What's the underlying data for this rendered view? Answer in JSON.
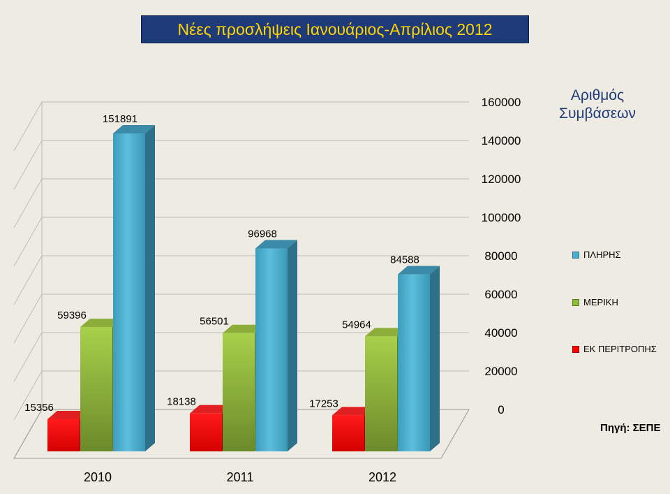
{
  "title": "Νέες προσλήψεις Ιανουάριος-Απρίλιος 2012",
  "y_axis_title": "Αριθμός Συμβάσεων",
  "source": "Πηγή: ΣΕΠΕ",
  "colors": {
    "title_background": "#1f3a78",
    "title_text": "#ffd700",
    "background": "#eeebe2"
  },
  "chart_data": {
    "type": "bar",
    "style": "3d-clustered-column",
    "categories": [
      "2010",
      "2011",
      "2012"
    ],
    "series": [
      {
        "name": "ΕΚ ΠΕΡΙΤΡΟΠΗΣ",
        "color": "#ff0000",
        "values": [
          15356,
          18138,
          17253
        ],
        "labels": [
          "15356",
          "18138",
          "17253"
        ]
      },
      {
        "name": "ΜΕΡΙΚΗ",
        "color": "#8dbd3c",
        "values": [
          59396,
          56501,
          54964
        ],
        "labels": [
          "59396",
          "56501",
          "54964"
        ]
      },
      {
        "name": "ΠΛΗΡΗΣ",
        "color": "#4aaecb",
        "values": [
          151891,
          96968,
          84588
        ],
        "labels": [
          "151891",
          "96968",
          "84588"
        ]
      }
    ],
    "legend_order": [
      "ΠΛΗΡΗΣ",
      "ΜΕΡΙΚΗ",
      "ΕΚ ΠΕΡΙΤΡΟΠΗΣ"
    ],
    "y_ticks": [
      "0",
      "20000",
      "40000",
      "60000",
      "80000",
      "100000",
      "120000",
      "140000",
      "160000"
    ],
    "ylim": [
      0,
      160000
    ],
    "grid": true,
    "legend_position": "right"
  }
}
